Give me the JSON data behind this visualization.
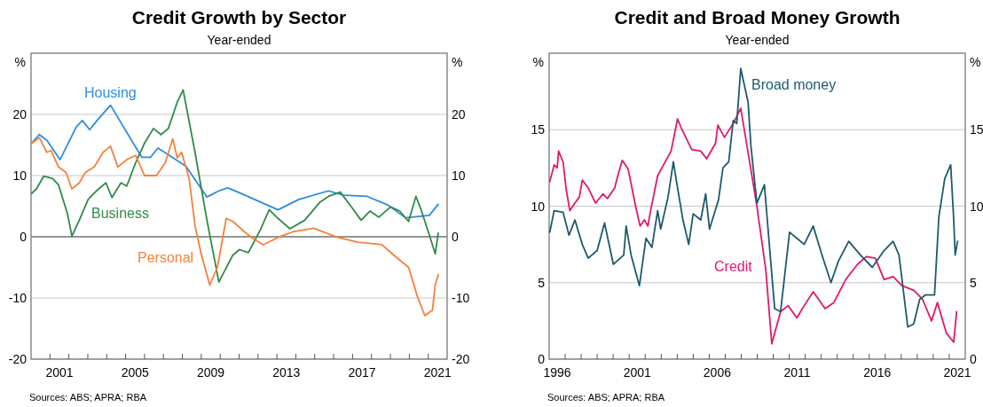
{
  "chart_data": [
    {
      "type": "line",
      "title": "Credit Growth by Sector",
      "subtitle": "Year-ended",
      "ylabel": "%",
      "y2label": "%",
      "annotations": [
        "Sources: ABS; APRA; RBA"
      ],
      "grid": "y",
      "xlim": [
        2000,
        2022
      ],
      "ylim": [
        -20,
        30
      ],
      "y2lim": [
        -20,
        30
      ],
      "yticks": [
        -20,
        -10,
        0,
        10,
        20
      ],
      "y2ticks": [
        -20,
        -10,
        0,
        10,
        20
      ],
      "xticks": [
        {
          "value": 2001,
          "label": null
        },
        {
          "value": 2002,
          "label": null
        },
        {
          "value": 2003,
          "label": null
        },
        {
          "value": 2004,
          "label": null
        },
        {
          "value": 2005,
          "label": null
        },
        {
          "value": 2006,
          "label": null
        },
        {
          "value": 2007,
          "label": null
        },
        {
          "value": 2008,
          "label": null
        },
        {
          "value": 2009,
          "label": null
        },
        {
          "value": 2010,
          "label": null
        },
        {
          "value": 2011,
          "label": null
        },
        {
          "value": 2012,
          "label": null
        },
        {
          "value": 2013,
          "label": null
        },
        {
          "value": 2014,
          "label": null
        },
        {
          "value": 2015,
          "label": null
        },
        {
          "value": 2016,
          "label": null
        },
        {
          "value": 2017,
          "label": null
        },
        {
          "value": 2018,
          "label": null
        },
        {
          "value": 2019,
          "label": null
        },
        {
          "value": 2020,
          "label": null
        },
        {
          "value": 2021,
          "label": null
        },
        {
          "value": 2001.5,
          "label": "2001"
        },
        {
          "value": 2005.5,
          "label": "2005"
        },
        {
          "value": 2009.5,
          "label": "2009"
        },
        {
          "value": 2013.5,
          "label": "2013"
        },
        {
          "value": 2017.5,
          "label": "2017"
        },
        {
          "value": 2021.5,
          "label": "2021"
        }
      ],
      "ref_lines": [
        {
          "axis": "y",
          "value": 0,
          "color": "#7a7a7a"
        }
      ],
      "series": [
        {
          "name": "Housing",
          "color": "#2b8de0",
          "x": [
            2000.04,
            2000.43,
            2000.83,
            2001.53,
            2002.4,
            2002.71,
            2003.1,
            2003.49,
            2004.2,
            2005.85,
            2006.32,
            2006.71,
            2007.96,
            2008.2,
            2009.3,
            2009.93,
            2010.4,
            2011.02,
            2013.06,
            2014.16,
            2015.73,
            2016.51,
            2017.77,
            2018.86,
            2019.8,
            2021.06,
            2021.53
          ],
          "values": [
            15.3,
            16.7,
            15.8,
            12.6,
            18.0,
            19.0,
            17.5,
            19.0,
            21.5,
            13.0,
            13.0,
            14.5,
            12.0,
            11.5,
            6.5,
            7.5,
            8.0,
            7.2,
            4.4,
            6.1,
            7.5,
            6.8,
            6.6,
            5.2,
            3.1,
            3.5,
            5.3
          ]
        },
        {
          "name": "Business",
          "color": "#2e8b47",
          "x": [
            2000.04,
            2000.28,
            2000.67,
            2001.14,
            2001.45,
            2001.93,
            2002.16,
            2002.55,
            2003.02,
            2003.49,
            2003.96,
            2004.28,
            2004.75,
            2005.06,
            2005.53,
            2006.0,
            2006.47,
            2006.87,
            2007.26,
            2007.73,
            2008.04,
            2008.67,
            2009.3,
            2009.93,
            2010.67,
            2011.02,
            2011.49,
            2012.12,
            2012.59,
            2013.06,
            2013.69,
            2014.47,
            2015.26,
            2015.73,
            2016.35,
            2016.98,
            2017.45,
            2017.92,
            2018.39,
            2019.02,
            2019.49,
            2019.96,
            2020.35,
            2020.59,
            2021.06,
            2021.37,
            2021.53
          ],
          "values": [
            7.1,
            7.8,
            9.9,
            9.5,
            8.5,
            3.7,
            0.1,
            2.7,
            6.1,
            7.6,
            8.8,
            6.4,
            8.8,
            8.3,
            12.1,
            15.3,
            17.7,
            16.7,
            17.7,
            22,
            24,
            13.8,
            2.7,
            -7.4,
            -3.0,
            -2.1,
            -2.6,
            1.1,
            4.4,
            3.0,
            1.3,
            2.7,
            5.6,
            6.6,
            7.3,
            4.7,
            2.7,
            4.2,
            3.2,
            4.9,
            4.2,
            2.5,
            6.6,
            4.7,
            0.3,
            -2.8,
            0.6
          ]
        },
        {
          "name": "Personal",
          "color": "#f5813a",
          "x": [
            2000.04,
            2000.44,
            2000.83,
            2001.06,
            2001.45,
            2001.85,
            2002.16,
            2002.55,
            2002.87,
            2003.34,
            2003.81,
            2004.2,
            2004.59,
            2005.06,
            2005.53,
            2006.0,
            2006.63,
            2007.1,
            2007.49,
            2007.73,
            2007.96,
            2008.36,
            2008.67,
            2008.98,
            2009.45,
            2009.85,
            2010.32,
            2010.67,
            2011.29,
            2011.65,
            2012.27,
            2013.22,
            2013.84,
            2014.94,
            2016.2,
            2017.29,
            2018.55,
            2019.18,
            2019.96,
            2020.43,
            2020.82,
            2021.22,
            2021.37,
            2021.53
          ],
          "values": [
            15.3,
            16.2,
            13.8,
            14.1,
            11.4,
            10.5,
            7.8,
            8.8,
            10.5,
            11.4,
            13.8,
            14.8,
            11.4,
            12.6,
            13.3,
            10.0,
            10.0,
            12.1,
            16.0,
            12.9,
            13.8,
            9.5,
            1.8,
            -2.6,
            -7.9,
            -5.0,
            3.0,
            2.5,
            0.8,
            -0.1,
            -1.3,
            0.1,
            0.8,
            1.4,
            -0.1,
            -0.9,
            -1.3,
            -3.0,
            -5.0,
            -9.8,
            -12.9,
            -12.0,
            -7.9,
            -6.2
          ]
        }
      ]
    },
    {
      "type": "line",
      "title": "Credit and Broad Money Growth",
      "subtitle": "Year-ended",
      "ylabel": "%",
      "y2label": "%",
      "annotations": [
        "Sources: ABS; APRA; RBA"
      ],
      "grid": "y",
      "xlim": [
        1996,
        2022
      ],
      "ylim": [
        0,
        20
      ],
      "y2lim": [
        0,
        20
      ],
      "yticks": [
        0,
        5,
        10,
        15
      ],
      "y2ticks": [
        0,
        5,
        10,
        15
      ],
      "xticks": [
        {
          "value": 1997,
          "label": null
        },
        {
          "value": 1998,
          "label": null
        },
        {
          "value": 1999,
          "label": null
        },
        {
          "value": 2000,
          "label": null
        },
        {
          "value": 2001,
          "label": null
        },
        {
          "value": 2002,
          "label": null
        },
        {
          "value": 2003,
          "label": null
        },
        {
          "value": 2004,
          "label": null
        },
        {
          "value": 2005,
          "label": null
        },
        {
          "value": 2006,
          "label": null
        },
        {
          "value": 2007,
          "label": null
        },
        {
          "value": 2008,
          "label": null
        },
        {
          "value": 2009,
          "label": null
        },
        {
          "value": 2010,
          "label": null
        },
        {
          "value": 2011,
          "label": null
        },
        {
          "value": 2012,
          "label": null
        },
        {
          "value": 2013,
          "label": null
        },
        {
          "value": 2014,
          "label": null
        },
        {
          "value": 2015,
          "label": null
        },
        {
          "value": 2016,
          "label": null
        },
        {
          "value": 2017,
          "label": null
        },
        {
          "value": 2018,
          "label": null
        },
        {
          "value": 2019,
          "label": null
        },
        {
          "value": 2020,
          "label": null
        },
        {
          "value": 2021,
          "label": null
        },
        {
          "value": 1996.5,
          "label": "1996"
        },
        {
          "value": 2001.5,
          "label": "2001"
        },
        {
          "value": 2006.5,
          "label": "2006"
        },
        {
          "value": 2011.5,
          "label": "2011"
        },
        {
          "value": 2016.5,
          "label": "2016"
        },
        {
          "value": 2021.5,
          "label": "2021"
        }
      ],
      "series": [
        {
          "name": "Credit",
          "color": "#e0186e",
          "x": [
            1996.04,
            1996.31,
            1996.5,
            1996.59,
            1996.87,
            1997.05,
            1997.29,
            1997.61,
            1997.89,
            1998.07,
            1998.44,
            1998.9,
            1999.36,
            1999.64,
            2000.1,
            2000.29,
            2000.57,
            2000.94,
            2001.4,
            2001.68,
            2001.95,
            2002.17,
            2002.32,
            2002.78,
            2003.15,
            2003.62,
            2004.02,
            2004.26,
            2004.91,
            2005.47,
            2005.84,
            2006.39,
            2006.54,
            2006.95,
            2007.5,
            2007.97,
            2008.43,
            2008.98,
            2009.54,
            2009.91,
            2010.46,
            2010.93,
            2011.48,
            2011.94,
            2012.5,
            2013.24,
            2013.79,
            2014.53,
            2015.27,
            2015.82,
            2016.38,
            2016.93,
            2017.49,
            2018.04,
            2018.78,
            2019.34,
            2019.89,
            2020.26,
            2020.82,
            2021.28,
            2021.46
          ],
          "values": [
            11.6,
            12.7,
            12.5,
            13.6,
            12.9,
            11.2,
            9.7,
            10.2,
            10.6,
            11.7,
            11.2,
            10.2,
            10.8,
            10.5,
            11.2,
            12.0,
            13.0,
            12.4,
            10.0,
            8.7,
            9.1,
            8.7,
            9.6,
            12.0,
            12.7,
            13.6,
            15.7,
            15.1,
            13.7,
            13.6,
            13.1,
            14.1,
            15.3,
            14.5,
            15.4,
            16.4,
            13.5,
            10.0,
            5.8,
            1.0,
            3.1,
            3.5,
            2.7,
            3.5,
            4.4,
            3.3,
            3.7,
            5.2,
            6.2,
            6.7,
            6.6,
            5.2,
            5.4,
            4.8,
            4.5,
            3.9,
            2.5,
            3.7,
            1.7,
            1.1,
            3.1
          ]
        },
        {
          "name": "Broad money",
          "color": "#1d5a6b",
          "x": [
            1996.04,
            1996.31,
            1996.87,
            1997.24,
            1997.61,
            1998.07,
            1998.44,
            1999.0,
            1999.46,
            2000.01,
            2000.66,
            2000.81,
            2001.12,
            2001.64,
            2002.05,
            2002.42,
            2002.78,
            2002.97,
            2003.43,
            2003.76,
            2003.99,
            2004.36,
            2004.72,
            2005.0,
            2005.47,
            2005.78,
            2006.02,
            2006.58,
            2006.86,
            2007.22,
            2007.5,
            2007.72,
            2007.97,
            2008.43,
            2008.61,
            2008.98,
            2009.45,
            2009.63,
            2010.09,
            2010.46,
            2011.02,
            2011.48,
            2011.94,
            2012.5,
            2013.05,
            2013.61,
            2014.07,
            2014.72,
            2015.45,
            2016.19,
            2016.93,
            2017.49,
            2017.86,
            2018.41,
            2018.78,
            2019.15,
            2019.52,
            2020.08,
            2020.35,
            2020.72,
            2021.09,
            2021.28,
            2021.37,
            2021.52
          ],
          "values": [
            8.3,
            9.7,
            9.6,
            8.1,
            9.1,
            7.5,
            6.6,
            7.1,
            8.9,
            6.2,
            6.8,
            8.7,
            6.8,
            4.8,
            7.9,
            7.3,
            9.7,
            8.5,
            10.6,
            12.9,
            11.4,
            9.1,
            7.5,
            9.5,
            9.1,
            10.8,
            8.5,
            10.4,
            12.5,
            12.9,
            15.6,
            15.4,
            19.0,
            16.8,
            13.9,
            10.2,
            11.4,
            9.1,
            3.3,
            3.1,
            8.3,
            7.9,
            7.5,
            8.7,
            6.8,
            5.0,
            6.4,
            7.7,
            6.8,
            6.0,
            7.1,
            7.7,
            6.8,
            2.1,
            2.3,
            3.9,
            4.2,
            4.2,
            9.3,
            11.8,
            12.7,
            9.1,
            6.8,
            7.7
          ]
        }
      ]
    }
  ]
}
